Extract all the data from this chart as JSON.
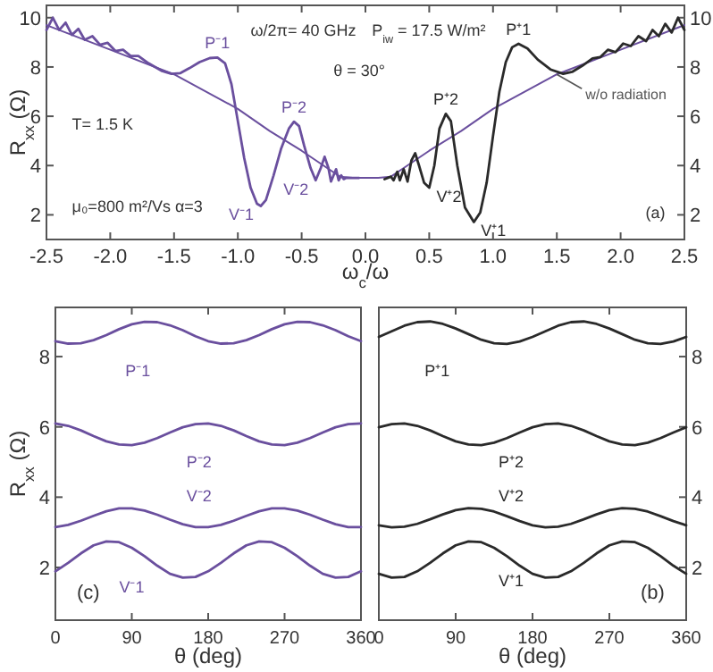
{
  "chart_data": [
    {
      "type": "line",
      "xlabel": "ω$_{c}$/ω",
      "ylabel": "R$_{xx}$ (Ω)",
      "xlim": [
        -2.5,
        2.5
      ],
      "ylim": [
        1,
        10.5
      ],
      "y2lim": [
        1,
        10.5
      ],
      "xticks": [
        -2.5,
        {
          "value": -2,
          "label": "-2.0"
        },
        -1.5,
        {
          "value": -1,
          "label": "-1.0"
        },
        -0.5,
        {
          "value": 0,
          "label": "0.0"
        },
        0.5,
        {
          "value": 1,
          "label": "1.0"
        },
        1.5,
        {
          "value": 2,
          "label": "2.0"
        },
        2.5
      ],
      "yticks": [
        2,
        4,
        6,
        8,
        10
      ],
      "y2ticks": [
        2,
        4,
        6,
        8,
        10
      ],
      "series": [
        {
          "name": "w/o radiation",
          "color": "#6a4f9e",
          "x": [
            -2.5,
            -2.0,
            -1.5,
            -1.0,
            -0.75,
            -0.5,
            -0.3,
            -0.2,
            -0.1,
            0,
            0.1,
            0.2,
            0.3,
            0.5,
            0.75,
            1.0,
            1.5,
            2.0,
            2.5
          ],
          "values": [
            9.7,
            8.7,
            7.7,
            6.3,
            5.4,
            4.6,
            3.9,
            3.55,
            3.5,
            3.5,
            3.5,
            3.55,
            3.9,
            4.6,
            5.4,
            6.3,
            7.7,
            8.7,
            9.7
          ]
        },
        {
          "color": "#6a4f9e",
          "x": [
            -2.5,
            -2.45,
            -2.4,
            -2.35,
            -2.3,
            -2.25,
            -2.2,
            -2.14,
            -2.08,
            -2.02,
            -1.96,
            -1.9,
            -1.84,
            -1.78,
            -1.7,
            -1.6,
            -1.52,
            -1.45,
            -1.38,
            -1.3,
            -1.22,
            -1.16,
            -1.1,
            -1.05,
            -1.0,
            -0.95,
            -0.9,
            -0.85,
            -0.82,
            -0.78,
            -0.72,
            -0.66,
            -0.6,
            -0.56,
            -0.52,
            -0.48,
            -0.43,
            -0.39,
            -0.35,
            -0.32,
            -0.29,
            -0.27,
            -0.25,
            -0.23,
            -0.21,
            -0.19,
            -0.17,
            -0.15,
            -0.05
          ],
          "values": [
            9.5,
            10.0,
            9.5,
            9.8,
            9.3,
            9.55,
            9.1,
            9.25,
            8.9,
            8.98,
            8.65,
            8.7,
            8.45,
            8.45,
            8.15,
            7.85,
            7.72,
            7.75,
            7.95,
            8.2,
            8.36,
            8.38,
            8.15,
            7.3,
            5.8,
            4.3,
            3.1,
            2.45,
            2.36,
            2.6,
            3.6,
            4.7,
            5.5,
            5.78,
            5.6,
            4.8,
            3.9,
            3.4,
            3.9,
            4.36,
            3.9,
            3.35,
            3.6,
            3.85,
            3.4,
            3.6,
            3.45,
            3.5,
            3.5
          ]
        },
        {
          "color": "#2a2a2a",
          "x": [
            0.15,
            0.2,
            0.22,
            0.25,
            0.27,
            0.3,
            0.33,
            0.36,
            0.39,
            0.42,
            0.46,
            0.5,
            0.54,
            0.58,
            0.63,
            0.67,
            0.72,
            0.78,
            0.85,
            0.9,
            0.95,
            1.0,
            1.05,
            1.1,
            1.15,
            1.2,
            1.27,
            1.35,
            1.45,
            1.55,
            1.62,
            1.7,
            1.78,
            1.84,
            1.9,
            1.96,
            2.02,
            2.08,
            2.14,
            2.2,
            2.25,
            2.3,
            2.35,
            2.4,
            2.45,
            2.5
          ],
          "values": [
            3.45,
            3.55,
            3.4,
            3.75,
            3.4,
            3.85,
            3.35,
            4.2,
            4.5,
            4.0,
            3.3,
            3.1,
            4.0,
            5.5,
            6.1,
            5.8,
            4.0,
            2.3,
            1.71,
            2.1,
            3.3,
            5.2,
            7.0,
            8.2,
            8.8,
            8.94,
            8.75,
            8.3,
            7.9,
            7.72,
            7.8,
            8.05,
            8.35,
            8.4,
            8.7,
            8.6,
            8.95,
            8.85,
            9.25,
            9.05,
            9.5,
            9.25,
            9.75,
            9.4,
            10.0,
            9.5
          ]
        }
      ],
      "annotations": [
        "ω/2π= 40 GHz",
        "P$_{iw}$ = 17.5 W/m²",
        "θ = 30°",
        "T= 1.5 K",
        "μ₀=800 m²/Vs  α=3",
        "(a)",
        {
          "text": "P⁻1",
          "x": -1.16,
          "y": 8.38
        },
        {
          "text": "V⁻1",
          "x": -0.82,
          "y": 2.36
        },
        {
          "text": "P⁻2",
          "x": -0.56,
          "y": 5.78
        },
        {
          "text": "V⁻2",
          "x": -0.39,
          "y": 3.4
        },
        {
          "text": "V⁺2",
          "x": 0.5,
          "y": 3.1
        },
        {
          "text": "P⁺2",
          "x": 0.63,
          "y": 6.1
        },
        {
          "text": "P⁺1",
          "x": 1.2,
          "y": 8.94
        },
        {
          "text": "V⁺1",
          "x": 0.85,
          "y": 1.71
        }
      ]
    },
    {
      "type": "line",
      "xlabel": "θ (deg)",
      "ylabel": "R$_{xx}$ (Ω)",
      "xlim": [
        0,
        360
      ],
      "ylim": [
        0.5,
        9.4
      ],
      "xticks": [
        0,
        90,
        180,
        270,
        360
      ],
      "yticks": [
        2,
        4,
        6,
        8
      ],
      "x": [
        0,
        15,
        30,
        45,
        60,
        75,
        90,
        105,
        120,
        135,
        150,
        165,
        180,
        195,
        210,
        225,
        240,
        255,
        270,
        285,
        300,
        315,
        330,
        345,
        360
      ],
      "series": [
        {
          "color": "#6a4f9e",
          "values": [
            8.44,
            8.37,
            8.38,
            8.47,
            8.61,
            8.78,
            8.92,
            8.99,
            8.98,
            8.89,
            8.75,
            8.58,
            8.44,
            8.37,
            8.38,
            8.47,
            8.61,
            8.78,
            8.92,
            8.99,
            8.98,
            8.89,
            8.75,
            8.58,
            8.44
          ]
        },
        {
          "color": "#6a4f9e",
          "values": [
            6.1,
            6.03,
            5.9,
            5.74,
            5.59,
            5.5,
            5.48,
            5.55,
            5.68,
            5.84,
            5.99,
            6.08,
            6.1,
            6.03,
            5.9,
            5.74,
            5.59,
            5.5,
            5.48,
            5.55,
            5.68,
            5.84,
            5.99,
            6.08,
            6.1
          ]
        },
        {
          "color": "#6a4f9e",
          "values": [
            3.15,
            3.21,
            3.33,
            3.47,
            3.6,
            3.68,
            3.68,
            3.62,
            3.5,
            3.36,
            3.23,
            3.15,
            3.15,
            3.21,
            3.33,
            3.47,
            3.6,
            3.68,
            3.68,
            3.62,
            3.5,
            3.36,
            3.23,
            3.15,
            3.15
          ]
        },
        {
          "color": "#6a4f9e",
          "values": [
            1.89,
            2.13,
            2.4,
            2.63,
            2.74,
            2.72,
            2.56,
            2.32,
            2.05,
            1.82,
            1.71,
            1.73,
            1.89,
            2.13,
            2.4,
            2.63,
            2.74,
            2.72,
            2.56,
            2.32,
            2.05,
            1.82,
            1.71,
            1.73,
            1.89
          ]
        }
      ],
      "annotations": [
        "(c)",
        "P⁻1",
        "P⁻2",
        "V⁻2",
        "V⁻1"
      ]
    },
    {
      "type": "line",
      "xlabel": "θ (deg)",
      "xlim": [
        0,
        360
      ],
      "y2lim": [
        0.5,
        9.4
      ],
      "xticks": [
        0,
        90,
        180,
        270,
        360
      ],
      "y2ticks": [
        2,
        4,
        6,
        8
      ],
      "x": [
        0,
        15,
        30,
        45,
        60,
        75,
        90,
        105,
        120,
        135,
        150,
        165,
        180,
        195,
        210,
        225,
        240,
        255,
        270,
        285,
        300,
        315,
        330,
        345,
        360
      ],
      "series": [
        {
          "color": "#2a2a2a",
          "axis": "y2",
          "values": [
            8.56,
            8.72,
            8.88,
            8.98,
            9.0,
            8.93,
            8.8,
            8.64,
            8.48,
            8.38,
            8.36,
            8.43,
            8.56,
            8.72,
            8.88,
            8.98,
            9.0,
            8.93,
            8.8,
            8.64,
            8.48,
            8.38,
            8.36,
            8.43,
            8.56
          ]
        },
        {
          "color": "#2a2a2a",
          "axis": "y2",
          "values": [
            5.99,
            6.08,
            6.1,
            6.03,
            5.9,
            5.74,
            5.59,
            5.5,
            5.48,
            5.55,
            5.68,
            5.84,
            5.99,
            6.08,
            6.1,
            6.03,
            5.9,
            5.74,
            5.59,
            5.5,
            5.48,
            5.55,
            5.68,
            5.84,
            5.99
          ]
        },
        {
          "color": "#2a2a2a",
          "axis": "y2",
          "values": [
            3.2,
            3.14,
            3.16,
            3.24,
            3.37,
            3.51,
            3.63,
            3.69,
            3.67,
            3.59,
            3.46,
            3.32,
            3.2,
            3.14,
            3.16,
            3.24,
            3.37,
            3.51,
            3.63,
            3.69,
            3.67,
            3.59,
            3.46,
            3.32,
            3.2
          ]
        },
        {
          "color": "#2a2a2a",
          "axis": "y2",
          "values": [
            1.82,
            1.71,
            1.73,
            1.89,
            2.13,
            2.4,
            2.63,
            2.74,
            2.72,
            2.56,
            2.32,
            2.05,
            1.82,
            1.71,
            1.73,
            1.89,
            2.13,
            2.4,
            2.63,
            2.74,
            2.72,
            2.56,
            2.32,
            2.05,
            1.82
          ]
        }
      ],
      "annotations": [
        "(b)",
        "P⁺1",
        "P⁺2",
        "V⁺2",
        "V⁺1"
      ]
    }
  ]
}
